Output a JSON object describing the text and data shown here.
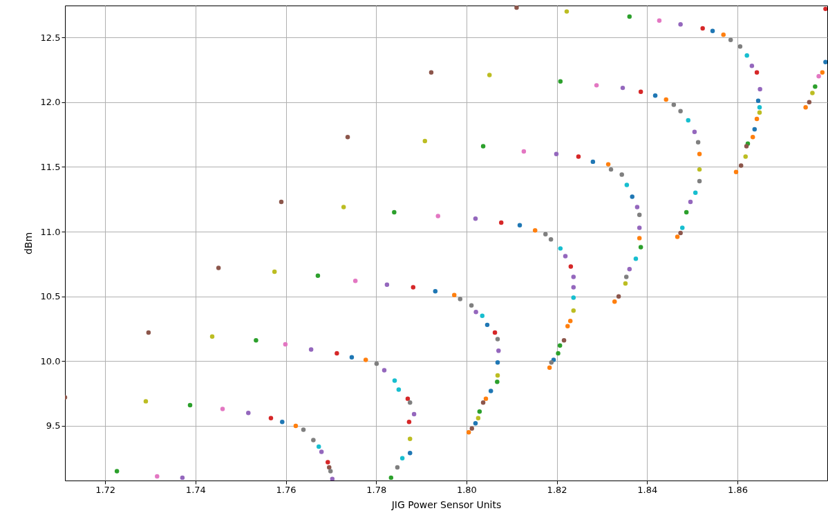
{
  "chart_data": {
    "type": "scatter",
    "xlabel": "JIG Power Sensor Units",
    "ylabel": "dBm",
    "marker": "circle",
    "grid": true,
    "xlim": [
      1.7111,
      1.8799
    ],
    "ylim": [
      9.078,
      12.746
    ],
    "xticks": [
      1.72,
      1.74,
      1.76,
      1.78,
      {
        "value": 1.8,
        "label": "1.80"
      },
      1.82,
      1.84,
      1.86
    ],
    "yticks": [
      9.5,
      {
        "value": 10,
        "label": "10.0"
      },
      10.5,
      {
        "value": 11,
        "label": "11.0"
      },
      11.5,
      {
        "value": 12,
        "label": "12.0"
      },
      12.5
    ],
    "x": [
      1.7111,
      1.729,
      1.7388,
      1.746,
      1.7517,
      1.7567,
      1.7592,
      1.7622,
      1.7639,
      1.7661,
      1.7673,
      1.7679,
      1.7693,
      1.7696,
      1.7699,
      1.7703,
      1.7226,
      1.7315,
      1.7371,
      1.7296,
      1.7437,
      1.7534,
      1.7599,
      1.7656,
      1.7713,
      1.7746,
      1.7777,
      1.7801,
      1.7818,
      1.7841,
      1.785,
      1.787,
      1.7875,
      1.7884,
      1.7873,
      1.7875,
      1.7875,
      1.7858,
      1.7847,
      1.7833,
      1.7451,
      1.7575,
      1.7671,
      1.7754,
      1.7824,
      1.7882,
      1.7931,
      1.7973,
      1.7986,
      1.8011,
      1.8021,
      1.8035,
      1.8046,
      1.8063,
      1.8069,
      1.8071,
      1.8069,
      1.8069,
      1.8068,
      1.8054,
      1.8043,
      1.8037,
      1.8029,
      1.8026,
      1.802,
      1.8012,
      1.8005,
      1.759,
      1.7728,
      1.784,
      1.7937,
      1.802,
      1.8077,
      1.8118,
      1.8152,
      1.8175,
      1.8187,
      1.8208,
      1.8219,
      1.8231,
      1.8237,
      1.8237,
      1.8237,
      1.8237,
      1.823,
      1.8224,
      1.8216,
      1.8207,
      1.8203,
      1.8193,
      1.8188,
      1.8184,
      1.7737,
      1.7908,
      1.8037,
      1.8127,
      1.8199,
      1.8248,
      1.828,
      1.8314,
      1.832,
      1.8344,
      1.8355,
      1.8367,
      1.8378,
      1.8383,
      1.8383,
      1.8383,
      1.8386,
      1.8375,
      1.8361,
      1.8354,
      1.8352,
      1.8337,
      1.8328,
      1.7922,
      1.8051,
      1.8208,
      1.8288,
      1.8346,
      1.8386,
      1.8418,
      1.8442,
      1.8459,
      1.8474,
      1.8491,
      1.8505,
      1.8513,
      1.8516,
      1.8516,
      1.8516,
      1.8507,
      1.8496,
      1.8487,
      1.8478,
      1.8474,
      1.8467,
      1.8111,
      1.8222,
      1.8361,
      1.8427,
      1.8474,
      1.8523,
      1.8545,
      1.8569,
      1.8585,
      1.8606,
      1.8621,
      1.8632,
      1.8643,
      1.865,
      1.8646,
      1.8649,
      1.8649,
      1.8643,
      1.8638,
      1.8634,
      1.8623,
      1.862,
      1.8618,
      1.8608,
      1.8597,
      1.8795,
      1.8795,
      1.8788,
      1.878,
      1.8772,
      1.8766,
      1.8759,
      1.8751
    ],
    "values": [
      9.72,
      9.69,
      9.66,
      9.63,
      9.6,
      9.56,
      9.53,
      9.5,
      9.47,
      9.39,
      9.34,
      9.3,
      9.22,
      9.18,
      9.15,
      9.09,
      9.15,
      9.11,
      9.1,
      10.22,
      10.19,
      10.16,
      10.13,
      10.09,
      10.06,
      10.03,
      10.01,
      9.98,
      9.93,
      9.85,
      9.78,
      9.71,
      9.68,
      9.59,
      9.53,
      9.4,
      9.29,
      9.25,
      9.18,
      9.1,
      10.72,
      10.69,
      10.66,
      10.62,
      10.59,
      10.57,
      10.54,
      10.51,
      10.48,
      10.43,
      10.38,
      10.35,
      10.28,
      10.22,
      10.17,
      10.08,
      9.99,
      9.89,
      9.84,
      9.77,
      9.71,
      9.68,
      9.61,
      9.56,
      9.52,
      9.48,
      9.45,
      11.23,
      11.19,
      11.15,
      11.12,
      11.1,
      11.07,
      11.05,
      11.01,
      10.98,
      10.94,
      10.87,
      10.81,
      10.73,
      10.65,
      10.57,
      10.49,
      10.39,
      10.31,
      10.27,
      10.16,
      10.12,
      10.06,
      10.01,
      9.99,
      9.95,
      11.73,
      11.7,
      11.66,
      11.62,
      11.6,
      11.58,
      11.54,
      11.52,
      11.48,
      11.44,
      11.36,
      11.27,
      11.19,
      11.13,
      11.03,
      10.95,
      10.88,
      10.79,
      10.71,
      10.65,
      10.6,
      10.5,
      10.46,
      12.23,
      12.21,
      12.16,
      12.13,
      12.11,
      12.08,
      12.05,
      12.02,
      11.98,
      11.93,
      11.86,
      11.77,
      11.69,
      11.6,
      11.48,
      11.39,
      11.3,
      11.23,
      11.15,
      11.03,
      10.99,
      10.96,
      12.73,
      12.7,
      12.66,
      12.63,
      12.6,
      12.57,
      12.55,
      12.52,
      12.48,
      12.43,
      12.36,
      12.28,
      12.23,
      12.1,
      12.01,
      11.96,
      11.92,
      11.87,
      11.79,
      11.73,
      11.68,
      11.66,
      11.58,
      11.51,
      11.46,
      12.72,
      12.31,
      12.23,
      12.2,
      12.12,
      12.07,
      12.0,
      11.96
    ],
    "colors": [
      "#8c564b",
      "#bcbd22",
      "#2ca02c",
      "#e377c2",
      "#9467bd",
      "#d62728",
      "#1f77b4",
      "#ff7f0e",
      "#7f7f7f",
      "#7f7f7f",
      "#17becf",
      "#9467bd",
      "#d62728",
      "#8c564b",
      "#7f7f7f",
      "#9467bd",
      "#2ca02c",
      "#e377c2",
      "#9467bd",
      "#8c564b",
      "#bcbd22",
      "#2ca02c",
      "#e377c2",
      "#9467bd",
      "#d62728",
      "#1f77b4",
      "#ff7f0e",
      "#7f7f7f",
      "#9467bd",
      "#17becf",
      "#17becf",
      "#d62728",
      "#7f7f7f",
      "#9467bd",
      "#d62728",
      "#bcbd22",
      "#1f77b4",
      "#17becf",
      "#7f7f7f",
      "#2ca02c",
      "#8c564b",
      "#bcbd22",
      "#2ca02c",
      "#e377c2",
      "#9467bd",
      "#d62728",
      "#1f77b4",
      "#ff7f0e",
      "#7f7f7f",
      "#7f7f7f",
      "#9467bd",
      "#17becf",
      "#1f77b4",
      "#d62728",
      "#7f7f7f",
      "#9467bd",
      "#1f77b4",
      "#bcbd22",
      "#2ca02c",
      "#1f77b4",
      "#ff7f0e",
      "#8c564b",
      "#2ca02c",
      "#bcbd22",
      "#1f77b4",
      "#8c564b",
      "#ff7f0e",
      "#8c564b",
      "#bcbd22",
      "#2ca02c",
      "#e377c2",
      "#9467bd",
      "#d62728",
      "#1f77b4",
      "#ff7f0e",
      "#7f7f7f",
      "#7f7f7f",
      "#17becf",
      "#9467bd",
      "#d62728",
      "#9467bd",
      "#9467bd",
      "#17becf",
      "#bcbd22",
      "#ff7f0e",
      "#ff7f0e",
      "#8c564b",
      "#2ca02c",
      "#2ca02c",
      "#1f77b4",
      "#7f7f7f",
      "#ff7f0e",
      "#8c564b",
      "#bcbd22",
      "#2ca02c",
      "#e377c2",
      "#9467bd",
      "#d62728",
      "#1f77b4",
      "#ff7f0e",
      "#7f7f7f",
      "#7f7f7f",
      "#17becf",
      "#1f77b4",
      "#9467bd",
      "#7f7f7f",
      "#9467bd",
      "#ff7f0e",
      "#2ca02c",
      "#17becf",
      "#9467bd",
      "#7f7f7f",
      "#bcbd22",
      "#8c564b",
      "#ff7f0e",
      "#8c564b",
      "#bcbd22",
      "#2ca02c",
      "#e377c2",
      "#9467bd",
      "#d62728",
      "#1f77b4",
      "#ff7f0e",
      "#7f7f7f",
      "#7f7f7f",
      "#17becf",
      "#9467bd",
      "#7f7f7f",
      "#ff7f0e",
      "#bcbd22",
      "#7f7f7f",
      "#17becf",
      "#9467bd",
      "#2ca02c",
      "#17becf",
      "#8c564b",
      "#ff7f0e",
      "#8c564b",
      "#bcbd22",
      "#2ca02c",
      "#e377c2",
      "#9467bd",
      "#d62728",
      "#1f77b4",
      "#ff7f0e",
      "#7f7f7f",
      "#7f7f7f",
      "#17becf",
      "#9467bd",
      "#d62728",
      "#9467bd",
      "#1f77b4",
      "#17becf",
      "#bcbd22",
      "#ff7f0e",
      "#1f77b4",
      "#ff7f0e",
      "#2ca02c",
      "#8c564b",
      "#bcbd22",
      "#8c564b",
      "#ff7f0e",
      "#d62728",
      "#1f77b4",
      "#ff7f0e",
      "#e377c2",
      "#2ca02c",
      "#bcbd22",
      "#8c564b",
      "#ff7f0e"
    ]
  }
}
